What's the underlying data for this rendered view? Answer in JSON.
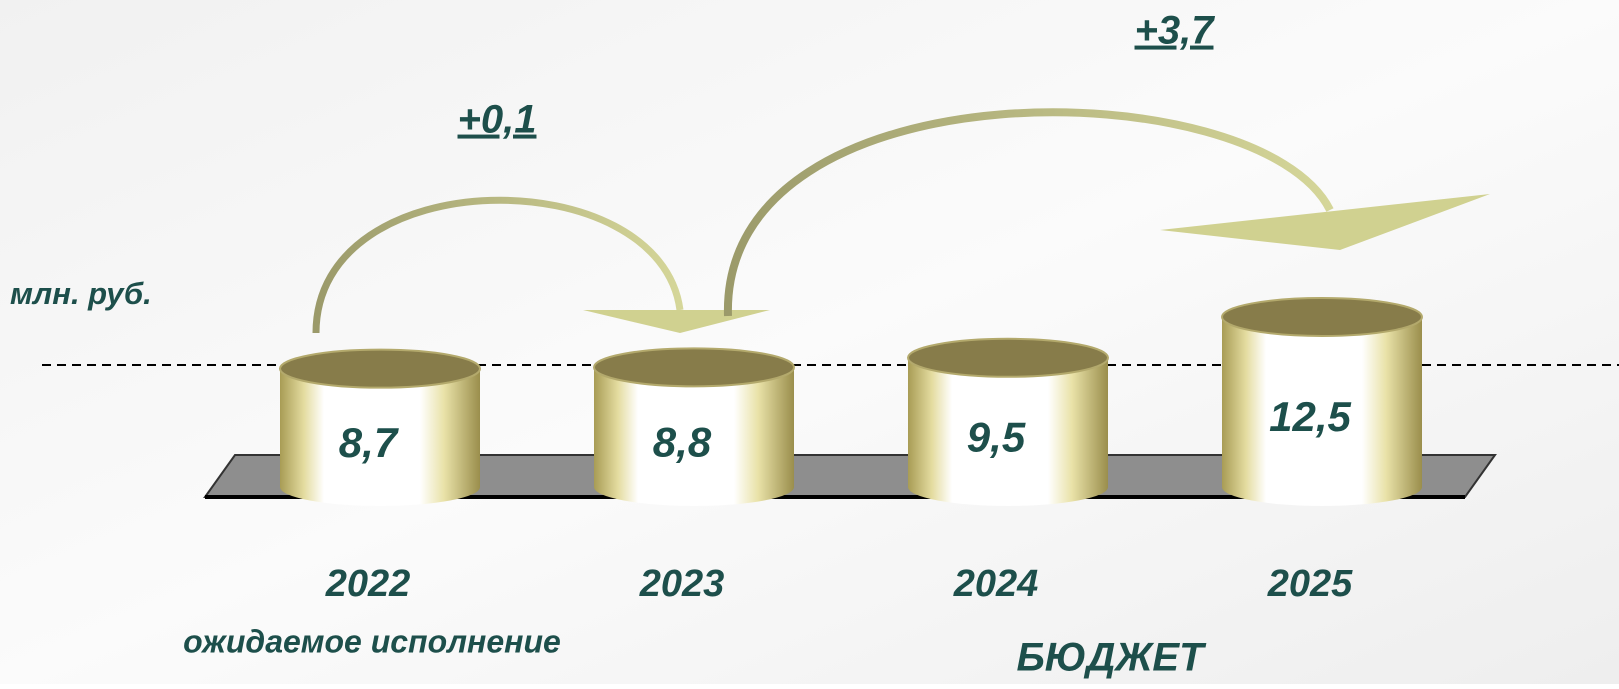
{
  "chart_data": {
    "type": "bar",
    "y_label": "млн. руб.",
    "categories": [
      "2022",
      "2023",
      "2024",
      "2025"
    ],
    "values": [
      8.7,
      8.8,
      9.5,
      12.5
    ],
    "value_labels": [
      "8,7",
      "8,8",
      "9,5",
      "12,5"
    ],
    "change_labels": [
      "+0,1",
      "+3,7"
    ],
    "notes": [
      "ожидаемое исполнение",
      "БЮДЖЕТ"
    ]
  }
}
